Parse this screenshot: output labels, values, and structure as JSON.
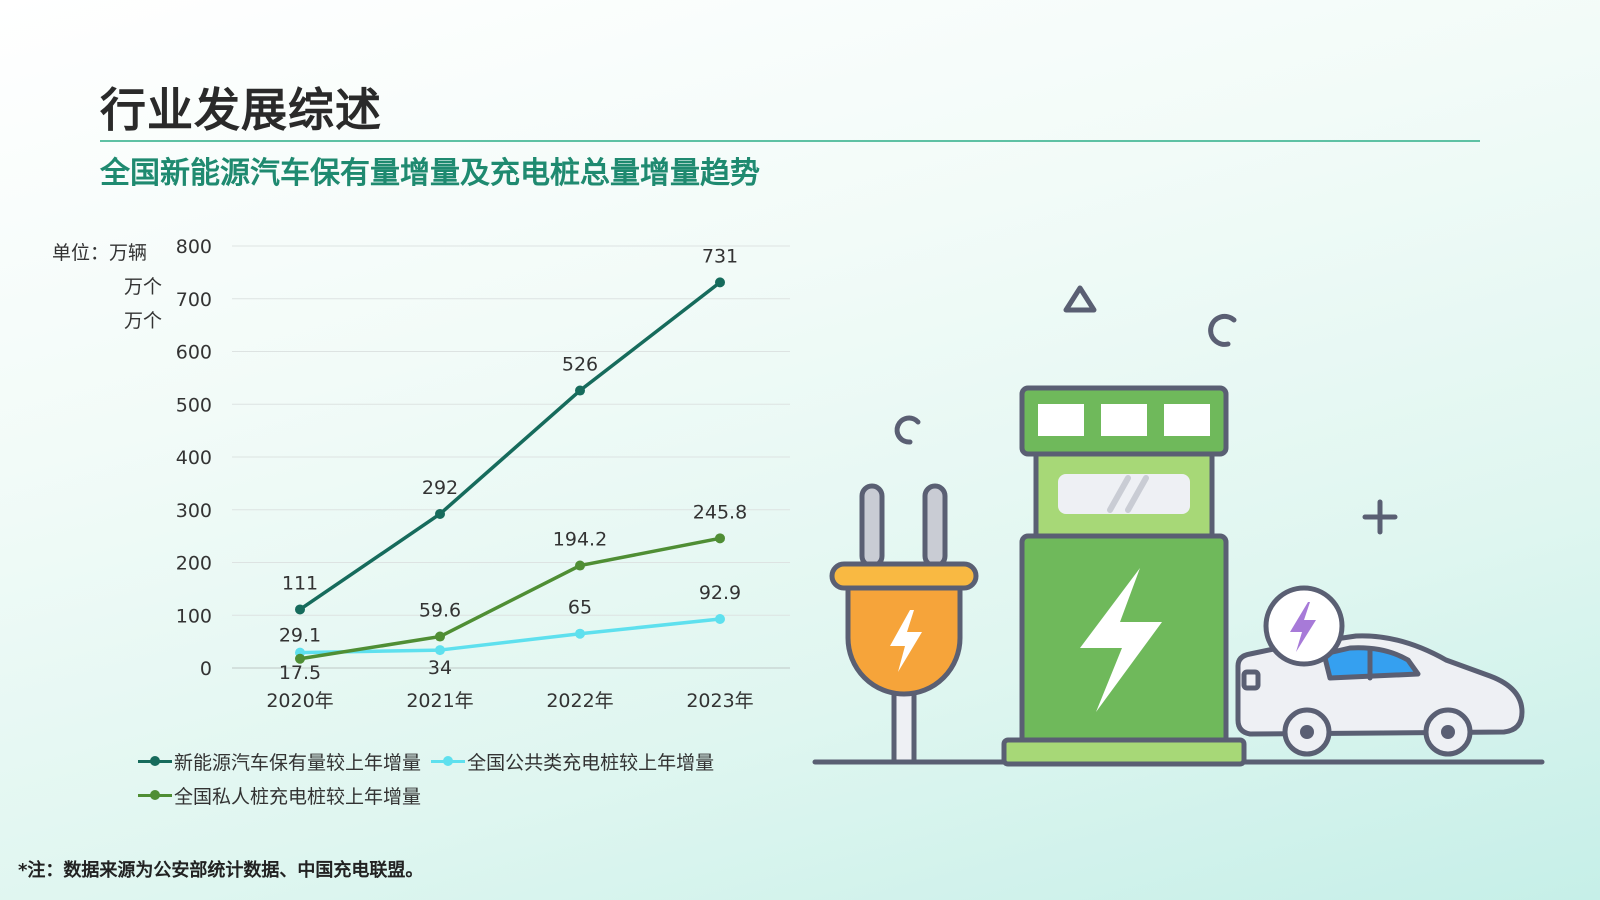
{
  "page": {
    "title": "行业发展综述",
    "subtitle": "全国新能源汽车保有量增量及充电桩总量增量趋势",
    "footnote": "*注：数据来源为公安部统计数据、中国充电联盟。"
  },
  "units": [
    "单位：万辆",
    "万个",
    "万个"
  ],
  "colors": {
    "title_rule": "#5ec1a4",
    "subtitle": "#1f8a70"
  },
  "chart_data": {
    "type": "line",
    "x": [
      "2020年",
      "2021年",
      "2022年",
      "2023年"
    ],
    "ylim": [
      0,
      800
    ],
    "yticks": [
      0,
      100,
      200,
      300,
      400,
      500,
      600,
      700,
      800
    ],
    "grid": true,
    "legend_position": "bottom",
    "series": [
      {
        "name": "新能源汽车保有量较上年增量",
        "values": [
          111,
          292,
          526,
          731
        ],
        "labels": [
          "111",
          "292",
          "526",
          "731"
        ],
        "color": "#166b5c"
      },
      {
        "name": "全国公共类充电桩较上年增量",
        "values": [
          29.1,
          34,
          65,
          92.9
        ],
        "labels": [
          "29.1",
          "34",
          "65",
          "92.9"
        ],
        "color": "#5ee0ee"
      },
      {
        "name": "全国私人桩充电桩较上年增量",
        "values": [
          17.5,
          59.6,
          194.2,
          245.8
        ],
        "labels": [
          "17.5",
          "59.6",
          "194.2",
          "245.8"
        ],
        "color": "#4f8e34"
      }
    ]
  },
  "illustration": {
    "icons": [
      "plug-icon",
      "charging-station-icon",
      "electric-car-icon",
      "lightning-icon",
      "triangle-icon",
      "ring-icon",
      "plus-icon"
    ]
  }
}
